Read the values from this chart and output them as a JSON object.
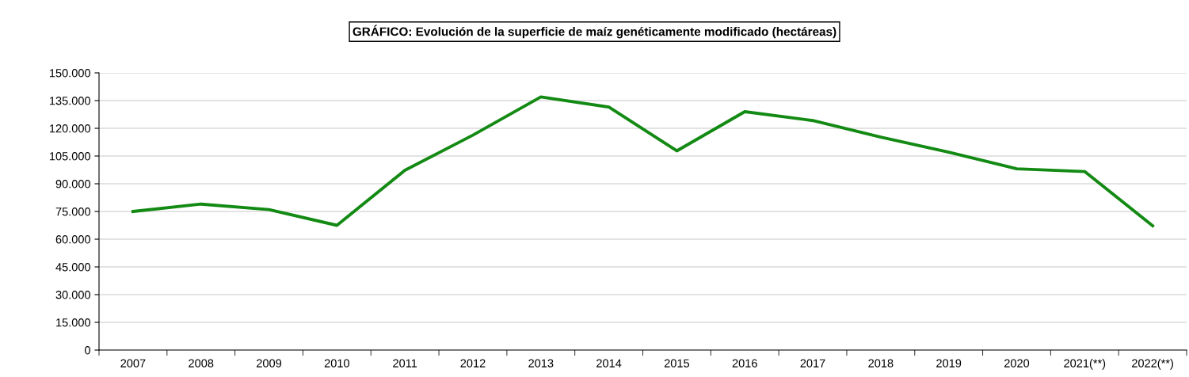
{
  "chart_data": {
    "type": "line",
    "title": "GRÁFICO: Evolución de la superficie de maíz genéticamente modificado (hectáreas)",
    "categories": [
      "2007",
      "2008",
      "2009",
      "2010",
      "2011",
      "2012",
      "2013",
      "2014",
      "2015",
      "2016",
      "2017",
      "2018",
      "2019",
      "2020",
      "2021(**)",
      "2022(**)"
    ],
    "series": [
      {
        "color": "#138a13",
        "values": [
          75000,
          79000,
          76000,
          67500,
          97300,
          116300,
          137000,
          131500,
          107800,
          129000,
          124200,
          115200,
          107100,
          98100,
          96600,
          67300
        ]
      }
    ],
    "ylim": [
      0,
      150000
    ],
    "yticks": [
      {
        "value": 0,
        "label": "0"
      },
      {
        "value": 15000,
        "label": "15.000"
      },
      {
        "value": 30000,
        "label": "30.000"
      },
      {
        "value": 45000,
        "label": "45.000"
      },
      {
        "value": 60000,
        "label": "60.000"
      },
      {
        "value": 75000,
        "label": "75.000"
      },
      {
        "value": 90000,
        "label": "90.000"
      },
      {
        "value": 105000,
        "label": "105.000"
      },
      {
        "value": 120000,
        "label": "120.000"
      },
      {
        "value": 135000,
        "label": "135.000"
      },
      {
        "value": 150000,
        "label": "150.000"
      }
    ],
    "grid": "y",
    "legend": false,
    "marker": "none",
    "line_style": "solid"
  }
}
